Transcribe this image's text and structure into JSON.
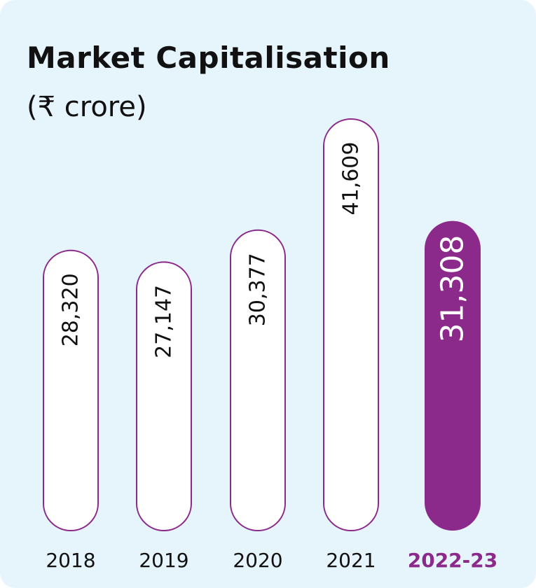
{
  "colors": {
    "background": "#e6f4fc",
    "bar_fill": "#ffffff",
    "bar_stroke": "#8b2a8b",
    "highlight": "#8b2a8b",
    "text": "#111111",
    "highlight_text": "#ffffff"
  },
  "chart_data": {
    "type": "bar",
    "title": "Market Capitalisation",
    "subtitle": "(₹ crore)",
    "categories": [
      "2018",
      "2019",
      "2020",
      "2021",
      "2022-23"
    ],
    "values": [
      28320,
      27147,
      30377,
      41609,
      31308
    ],
    "value_labels": [
      "28,320",
      "27,147",
      "30,377",
      "41,609",
      "31,308"
    ],
    "highlight_category": "2022-23",
    "bar_style": "rounded pill",
    "value_label_orientation": "vertical",
    "grid": false,
    "legend": "none"
  }
}
